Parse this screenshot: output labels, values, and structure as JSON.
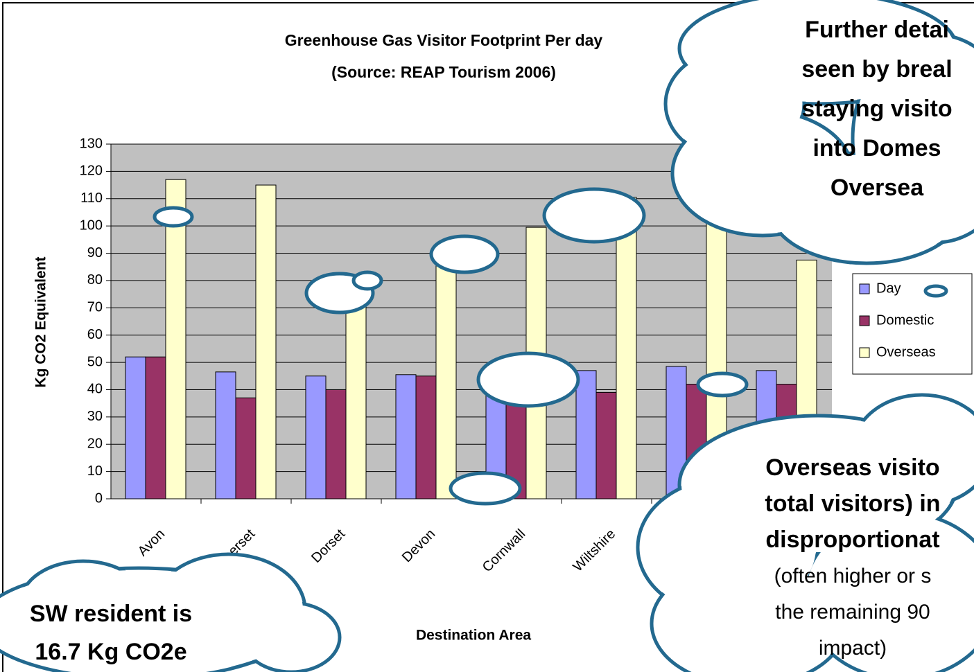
{
  "chart_data": {
    "type": "bar",
    "title": "Greenhouse Gas Visitor Footprint Per day",
    "subtitle": "(Source: REAP Tourism 2006)",
    "x_label": "Destination Area",
    "y_label": "Kg CO2 Equivalent",
    "categories": [
      "Avon",
      "Somerset",
      "Dorset",
      "Devon",
      "Cornwall",
      "Wiltshire",
      null,
      null
    ],
    "series": [
      {
        "name": "Day",
        "color": "#9999ff",
        "values": [
          52,
          46.5,
          45,
          45.5,
          40,
          47,
          48.5,
          47
        ]
      },
      {
        "name": "Domestic",
        "color": "#993366",
        "values": [
          52,
          37,
          40,
          45,
          35,
          39,
          42,
          42
        ]
      },
      {
        "name": "Overseas",
        "color": "#ffffcc",
        "values": [
          117,
          115,
          71,
          90,
          99.5,
          110.5,
          101,
          87.5
        ]
      }
    ],
    "ylim": [
      0,
      130
    ],
    "yticks": [
      0,
      10,
      20,
      30,
      40,
      50,
      60,
      70,
      80,
      90,
      100,
      110,
      120,
      130
    ],
    "grid": true,
    "legend": "right",
    "annotations": {
      "top_right": [
        "Further detai",
        "seen by breal",
        "staying visito",
        "into Domes",
        "Oversea"
      ],
      "bottom_right": [
        "Overseas visito",
        "total visitors) in",
        "disproportionat",
        "(often higher or s",
        "the remaining 90",
        "impact)"
      ],
      "bottom_left": [
        "SW resident is",
        "16.7 Kg CO2e"
      ]
    }
  }
}
